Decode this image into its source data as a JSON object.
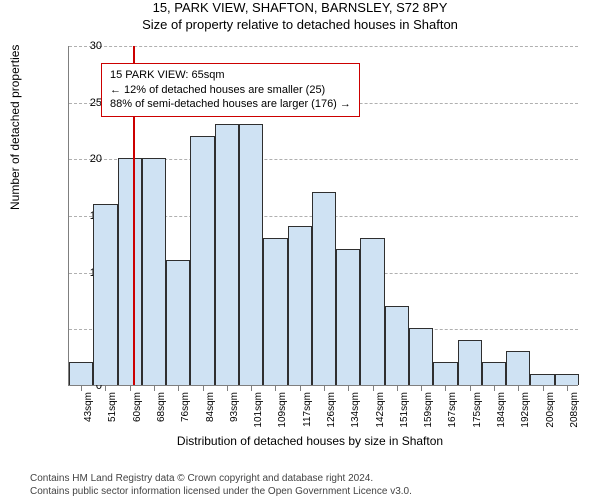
{
  "title_top": "15, PARK VIEW, SHAFTON, BARNSLEY, S72 8PY",
  "title_sub": "Size of property relative to detached houses in Shafton",
  "ylabel": "Number of detached properties",
  "xlabel": "Distribution of detached houses by size in Shafton",
  "ymax": 30,
  "ytick_step": 5,
  "yticks": [
    0,
    5,
    10,
    15,
    20,
    25,
    30
  ],
  "bar_color": "#cfe2f3",
  "bar_border_color": "#2f2f2f",
  "grid_color": "#b0b0b0",
  "axis_color": "#7f7f7f",
  "marker_color": "#cc0000",
  "marker_x_label": "65sqm",
  "xticks": [
    "43sqm",
    "51sqm",
    "60sqm",
    "68sqm",
    "76sqm",
    "84sqm",
    "93sqm",
    "101sqm",
    "109sqm",
    "117sqm",
    "126sqm",
    "134sqm",
    "142sqm",
    "151sqm",
    "159sqm",
    "167sqm",
    "175sqm",
    "184sqm",
    "192sqm",
    "200sqm",
    "208sqm"
  ],
  "values": [
    2,
    16,
    20,
    20,
    11,
    22,
    23,
    23,
    13,
    14,
    17,
    12,
    13,
    7,
    5,
    2,
    4,
    2,
    3,
    1,
    1
  ],
  "annotation": {
    "line1": "15 PARK VIEW: 65sqm",
    "line2": "← 12% of detached houses are smaller (25)",
    "line3": "88% of semi-detached houses are larger (176) →",
    "border_color": "#cc0000"
  },
  "footer": {
    "line1": "Contains HM Land Registry data © Crown copyright and database right 2024.",
    "line2": "Contains public sector information licensed under the Open Government Licence v3.0."
  },
  "type": "histogram",
  "background_color": "#ffffff"
}
